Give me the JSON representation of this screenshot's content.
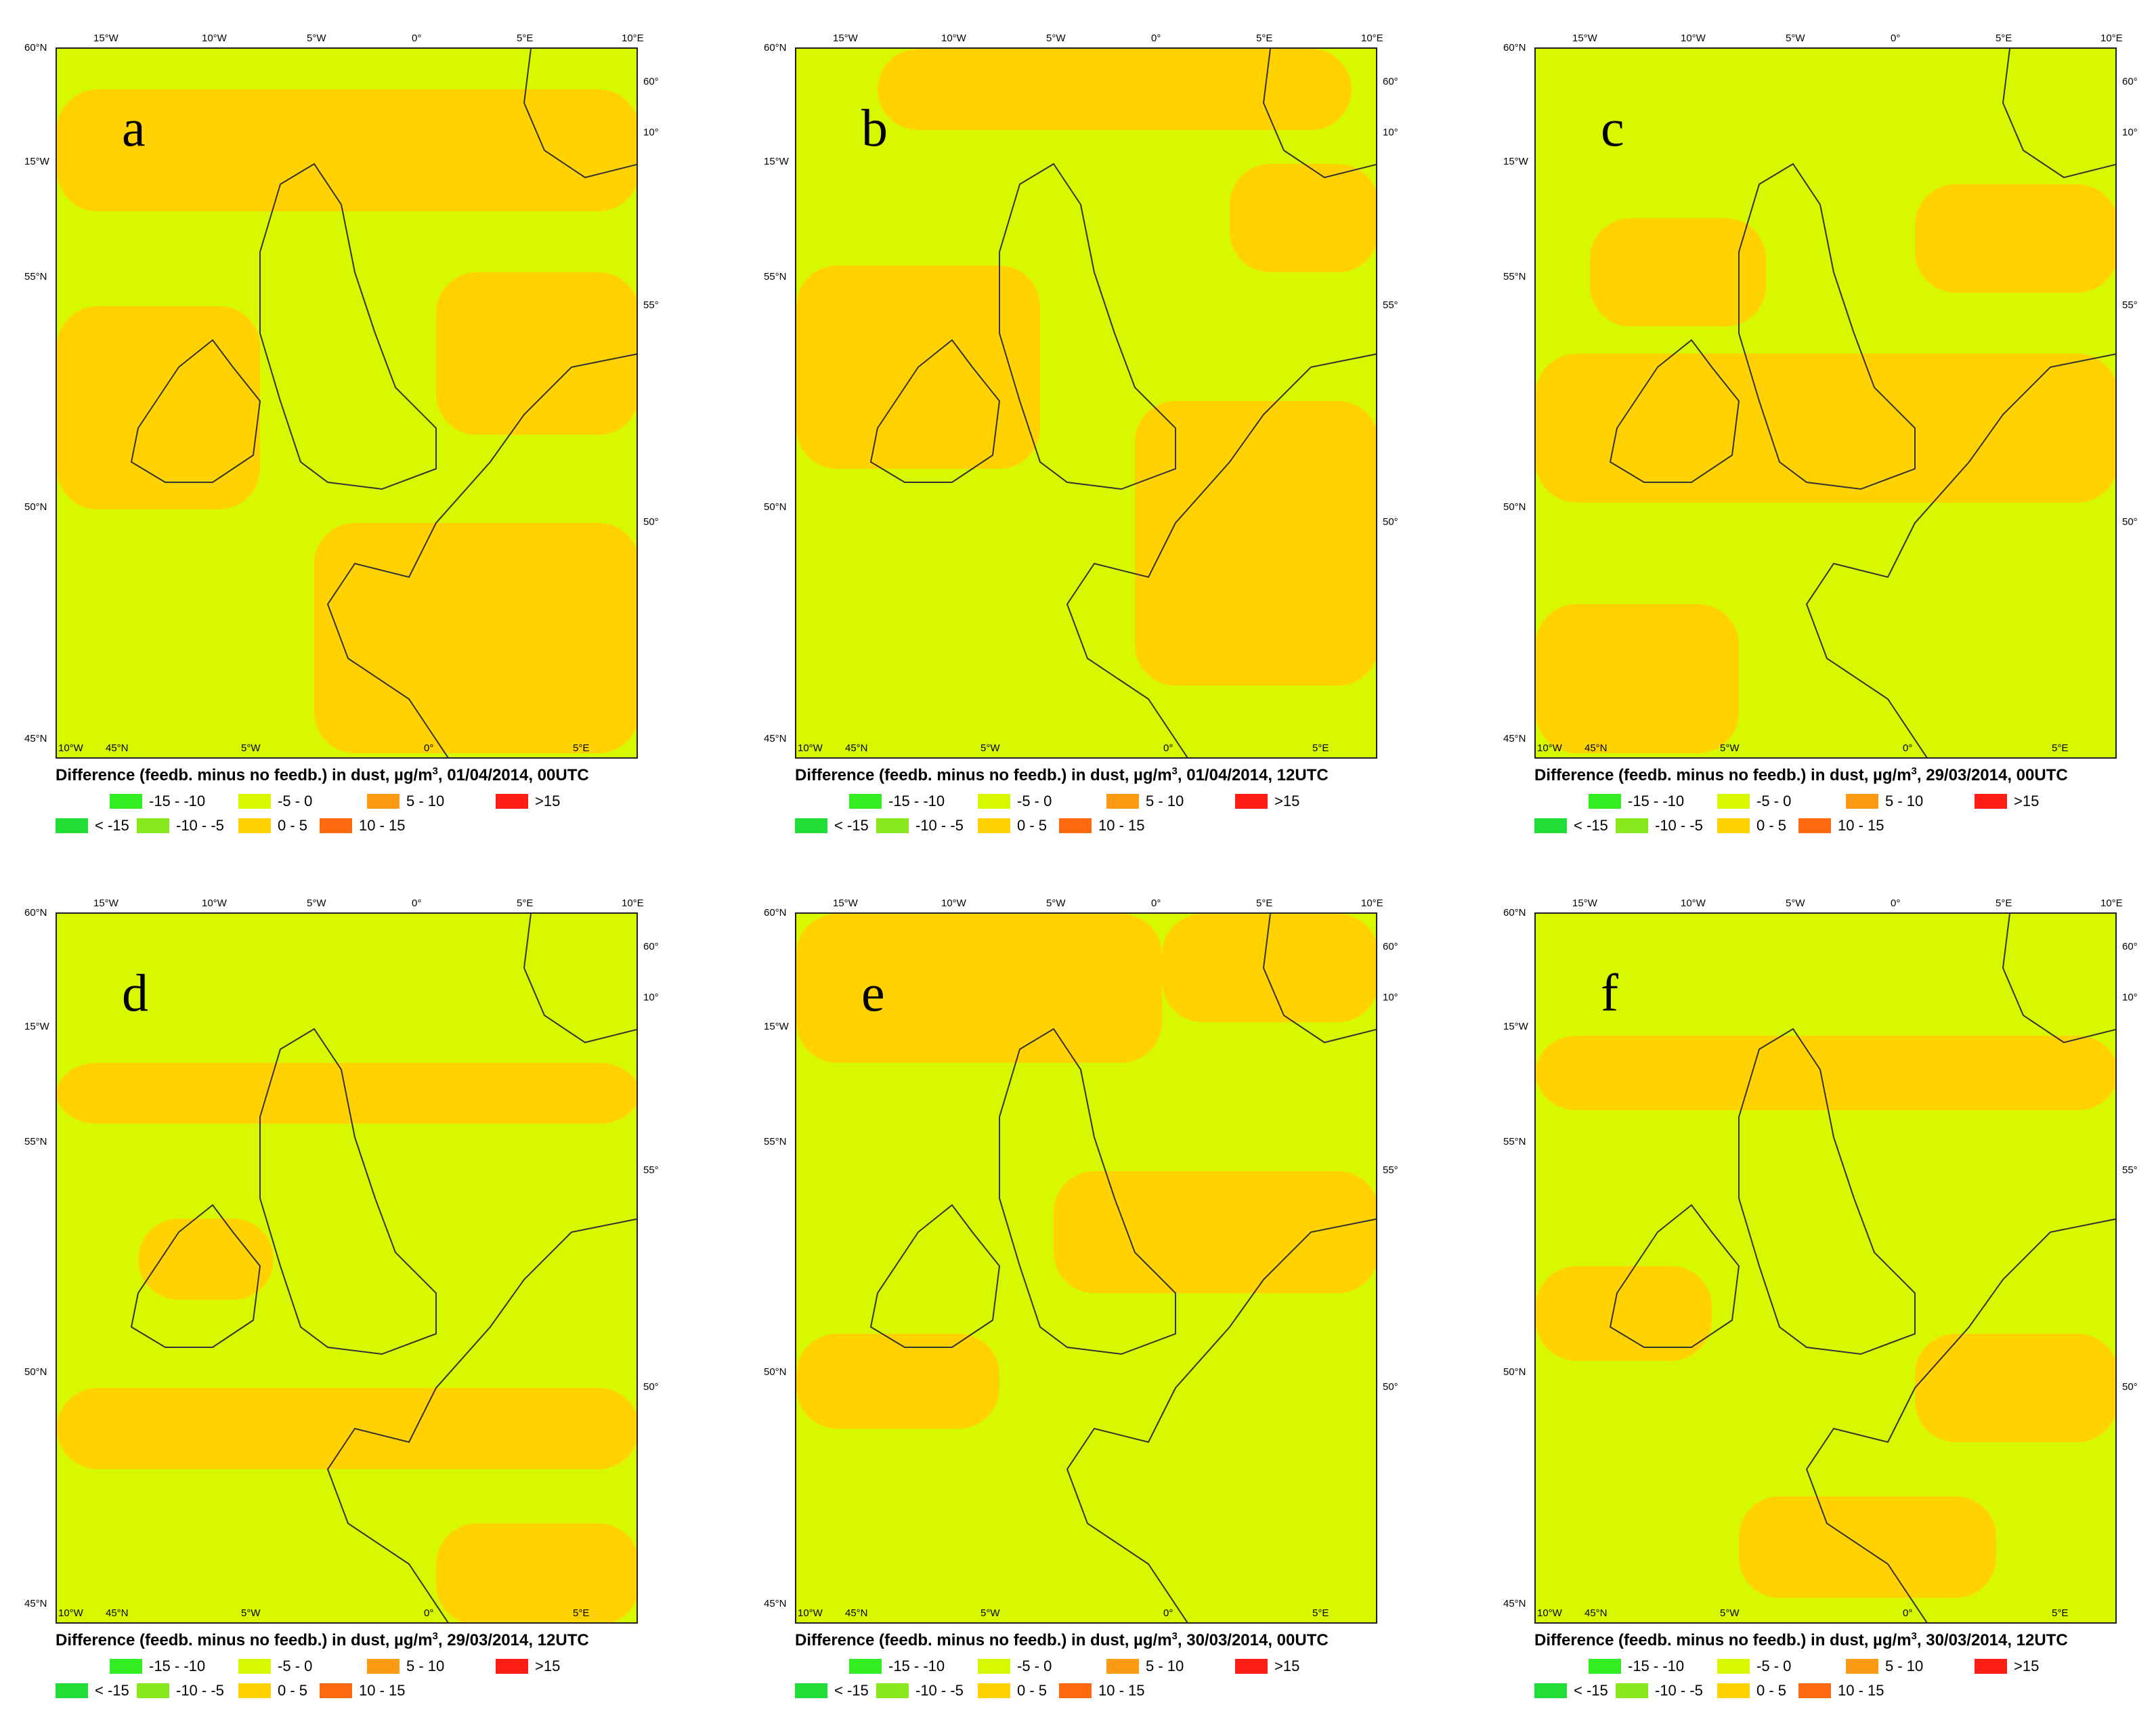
{
  "axis_labels": {
    "top_lon": [
      "15°W",
      "10°W",
      "5°W",
      "0°",
      "5°E",
      "10°E"
    ],
    "left_lat": [
      "60°N",
      "15°W",
      "55°N",
      "50°N",
      "45°N"
    ],
    "bottom_lon": [
      "10°W",
      "45°N",
      "5°W",
      "0°",
      "5°E"
    ],
    "right": [
      "60°",
      "10°",
      "55°",
      "50°"
    ]
  },
  "legend": {
    "row1": [
      {
        "label": "-15 - -10",
        "color": "#33ee22"
      },
      {
        "label": "-5 - 0",
        "color": "#d8f800"
      },
      {
        "label": "5 - 10",
        "color": "#ff9a14"
      },
      {
        "label": ">15",
        "color": "#ff1e14"
      }
    ],
    "row2": [
      {
        "label": "< -15",
        "color": "#22dd33"
      },
      {
        "label": "-10 - -5",
        "color": "#88e81e"
      },
      {
        "label": "0 - 5",
        "color": "#ffd200"
      },
      {
        "label": "10 - 15",
        "color": "#ff6a10"
      }
    ]
  },
  "caption": {
    "prefix": "Difference (feedb. minus no feedb.) in dust, µg/m",
    "sup": "3"
  },
  "panels": [
    {
      "letter": "a",
      "datetime": ", 01/04/2014, 00UTC"
    },
    {
      "letter": "b",
      "datetime": ", 01/04/2014, 12UTC"
    },
    {
      "letter": "c",
      "datetime": ", 29/03/2014, 00UTC"
    },
    {
      "letter": "d",
      "datetime": ", 29/03/2014, 12UTC"
    },
    {
      "letter": "e",
      "datetime": ", 30/03/2014, 00UTC"
    },
    {
      "letter": "f",
      "datetime": ", 30/03/2014, 12UTC"
    }
  ],
  "colors": {
    "neg_0_5": "#d8f800",
    "pos_0_5": "#ffd200"
  }
}
